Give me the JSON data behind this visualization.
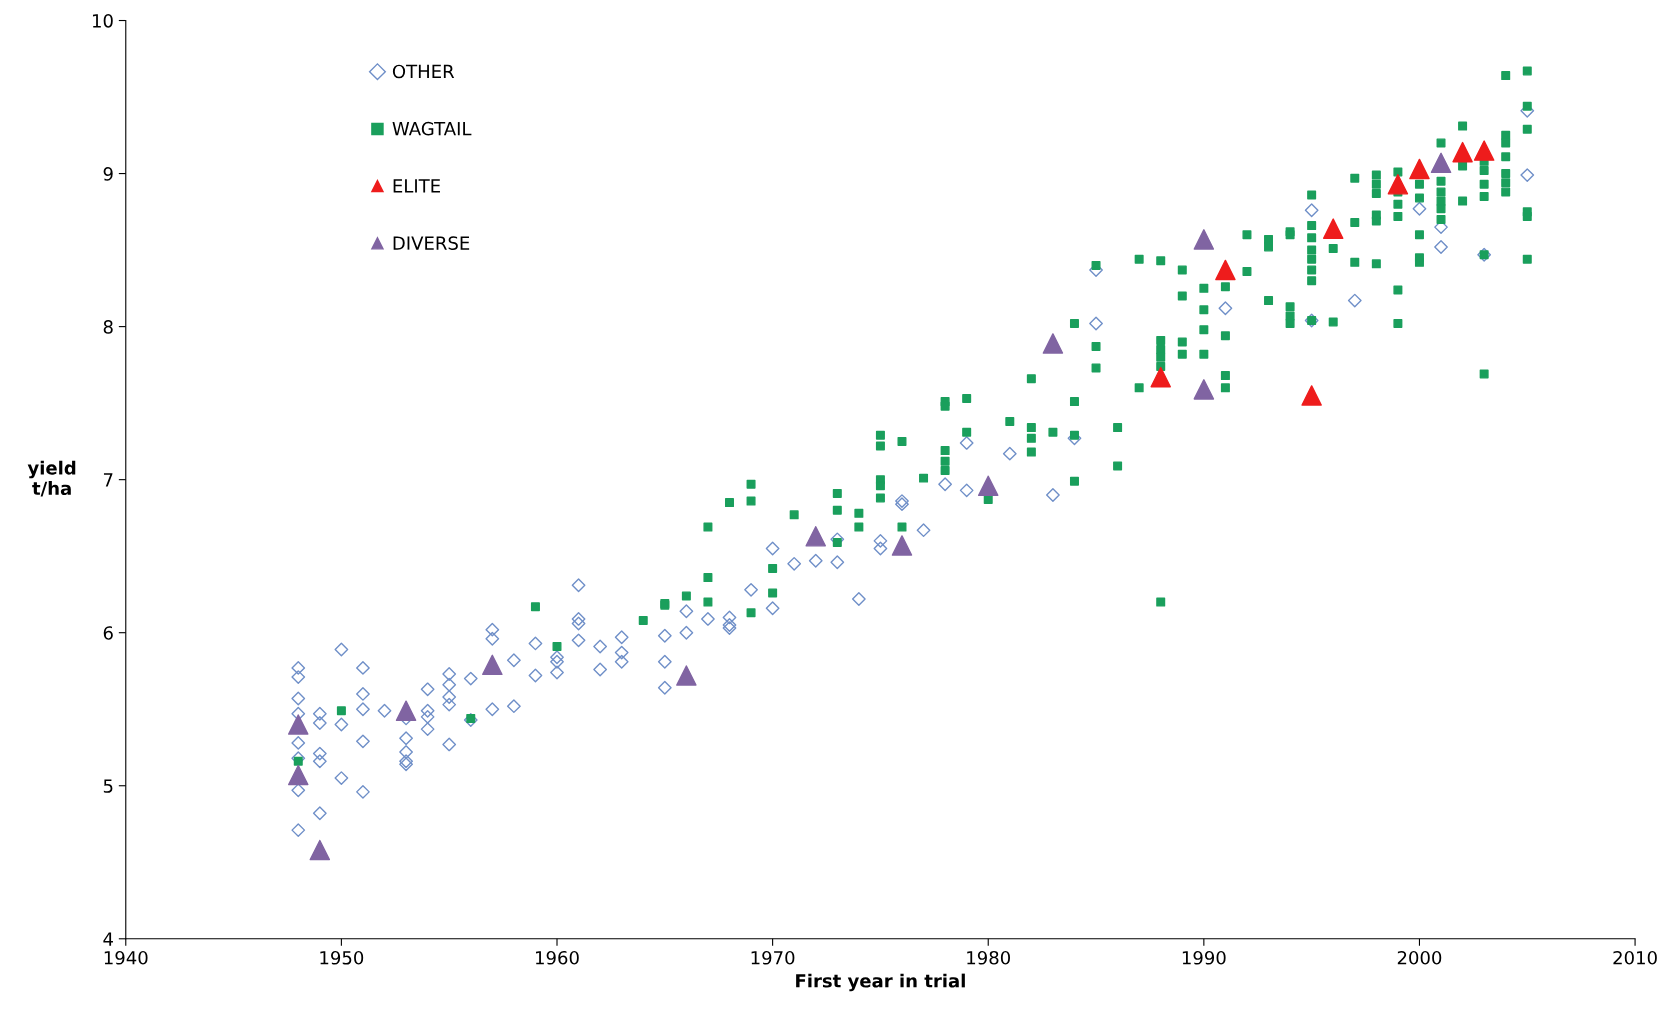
{
  "chart_data": {
    "type": "scatter",
    "xlabel": "First year in trial",
    "ylabel": "yield\nt/ha",
    "xlim": [
      1940,
      2010
    ],
    "xticks": [
      1940,
      1950,
      1960,
      1970,
      1980,
      1990,
      2000,
      2010
    ],
    "ylim": [
      4,
      10
    ],
    "yticks": [
      4,
      5,
      6,
      7,
      8,
      9,
      10
    ],
    "grid": false,
    "legend": "top left",
    "series": [
      {
        "name": "OTHER",
        "color": "#6f8fc8",
        "marker": "diamond",
        "x": [
          1948,
          1948,
          1948,
          1948,
          1948,
          1948,
          1948,
          1948,
          1949,
          1949,
          1949,
          1949,
          1949,
          1950,
          1950,
          1950,
          1951,
          1951,
          1951,
          1951,
          1951,
          1952,
          1953,
          1953,
          1953,
          1953,
          1953,
          1954,
          1954,
          1954,
          1954,
          1955,
          1955,
          1955,
          1955,
          1955,
          1956,
          1956,
          1957,
          1957,
          1957,
          1958,
          1958,
          1959,
          1959,
          1960,
          1960,
          1960,
          1961,
          1961,
          1961,
          1961,
          1962,
          1962,
          1963,
          1963,
          1963,
          1965,
          1965,
          1965,
          1966,
          1966,
          1967,
          1968,
          1968,
          1968,
          1969,
          1970,
          1970,
          1971,
          1972,
          1973,
          1973,
          1974,
          1975,
          1975,
          1976,
          1976,
          1977,
          1978,
          1979,
          1979,
          1981,
          1983,
          1984,
          1985,
          1985,
          1991,
          1995,
          1995,
          1997,
          2000,
          2001,
          2001,
          2003,
          2005,
          2005
        ],
        "values": [
          5.77,
          5.71,
          5.57,
          5.47,
          5.28,
          5.18,
          4.97,
          4.71,
          5.47,
          5.41,
          5.21,
          5.16,
          4.82,
          5.89,
          5.4,
          5.05,
          5.77,
          5.6,
          5.5,
          5.29,
          4.96,
          5.49,
          5.44,
          5.31,
          5.22,
          5.16,
          5.14,
          5.63,
          5.49,
          5.45,
          5.37,
          5.73,
          5.66,
          5.58,
          5.53,
          5.27,
          5.7,
          5.43,
          6.02,
          5.96,
          5.5,
          5.82,
          5.52,
          5.93,
          5.72,
          5.84,
          5.81,
          5.74,
          6.31,
          6.09,
          6.06,
          5.95,
          5.91,
          5.76,
          5.97,
          5.87,
          5.81,
          5.98,
          5.81,
          5.64,
          6.14,
          6.0,
          6.09,
          6.1,
          6.05,
          6.03,
          6.28,
          6.55,
          6.16,
          6.45,
          6.47,
          6.61,
          6.46,
          6.22,
          6.6,
          6.55,
          6.86,
          6.84,
          6.67,
          6.97,
          7.24,
          6.93,
          7.17,
          6.9,
          7.27,
          8.37,
          8.02,
          8.12,
          8.76,
          8.04,
          8.17,
          8.77,
          8.65,
          8.52,
          8.47,
          9.41,
          8.99
        ]
      },
      {
        "name": "WAGTAIL",
        "color": "#1a9f5c",
        "marker": "square",
        "x": [
          1948,
          1950,
          1956,
          1959,
          1960,
          1964,
          1965,
          1965,
          1966,
          1967,
          1967,
          1967,
          1968,
          1969,
          1969,
          1969,
          1970,
          1970,
          1971,
          1973,
          1973,
          1973,
          1974,
          1974,
          1975,
          1975,
          1975,
          1975,
          1975,
          1976,
          1976,
          1977,
          1978,
          1978,
          1978,
          1978,
          1978,
          1979,
          1979,
          1980,
          1981,
          1982,
          1982,
          1982,
          1982,
          1983,
          1984,
          1984,
          1984,
          1984,
          1985,
          1985,
          1985,
          1986,
          1986,
          1987,
          1987,
          1988,
          1988,
          1988,
          1988,
          1988,
          1988,
          1989,
          1989,
          1989,
          1989,
          1990,
          1990,
          1990,
          1990,
          1991,
          1991,
          1991,
          1991,
          1992,
          1992,
          1993,
          1993,
          1993,
          1994,
          1994,
          1994,
          1994,
          1994,
          1995,
          1995,
          1995,
          1995,
          1995,
          1995,
          1995,
          1995,
          1996,
          1996,
          1997,
          1997,
          1997,
          1998,
          1998,
          1998,
          1998,
          1998,
          1998,
          1999,
          1999,
          1999,
          1999,
          1999,
          1999,
          2000,
          2000,
          2000,
          2000,
          2000,
          2001,
          2001,
          2001,
          2001,
          2001,
          2001,
          2002,
          2002,
          2002,
          2003,
          2003,
          2003,
          2003,
          2003,
          2003,
          2004,
          2004,
          2004,
          2004,
          2004,
          2004,
          2004,
          2005,
          2005,
          2005,
          2005,
          2005,
          2005
        ],
        "values": [
          5.16,
          5.49,
          5.44,
          6.17,
          5.91,
          6.08,
          6.19,
          6.18,
          6.24,
          6.69,
          6.36,
          6.2,
          6.85,
          6.97,
          6.86,
          6.13,
          6.42,
          6.26,
          6.77,
          6.91,
          6.8,
          6.59,
          6.78,
          6.69,
          7.29,
          7.22,
          7.0,
          6.96,
          6.88,
          7.25,
          6.69,
          7.01,
          7.51,
          7.48,
          7.19,
          7.12,
          7.06,
          7.53,
          7.31,
          6.87,
          7.38,
          7.66,
          7.34,
          7.27,
          7.18,
          7.31,
          8.02,
          7.51,
          7.29,
          6.99,
          8.4,
          7.87,
          7.73,
          7.34,
          7.09,
          8.44,
          7.6,
          8.43,
          7.91,
          7.85,
          7.8,
          7.74,
          6.2,
          8.37,
          8.2,
          7.9,
          7.82,
          8.25,
          8.11,
          7.98,
          7.82,
          8.26,
          7.94,
          7.68,
          7.6,
          8.6,
          8.36,
          8.57,
          8.52,
          8.17,
          8.62,
          8.6,
          8.13,
          8.07,
          8.02,
          8.86,
          8.66,
          8.58,
          8.5,
          8.44,
          8.37,
          8.3,
          8.04,
          8.51,
          8.03,
          8.97,
          8.68,
          8.42,
          8.99,
          8.93,
          8.87,
          8.73,
          8.69,
          8.41,
          9.01,
          8.88,
          8.8,
          8.72,
          8.24,
          8.02,
          8.93,
          8.84,
          8.6,
          8.45,
          8.42,
          9.2,
          8.95,
          8.88,
          8.82,
          8.77,
          8.7,
          9.31,
          9.05,
          8.82,
          9.08,
          9.02,
          8.93,
          8.85,
          8.47,
          7.69,
          9.64,
          9.25,
          9.2,
          9.11,
          9.0,
          8.94,
          8.88,
          9.67,
          9.44,
          9.29,
          8.75,
          8.72,
          8.44
        ]
      },
      {
        "name": "ELITE",
        "color": "#ee1c1c",
        "marker": "triangle",
        "x": [
          1988,
          1991,
          1995,
          1996,
          1999,
          2000,
          2002,
          2003
        ],
        "values": [
          7.67,
          8.37,
          7.55,
          8.64,
          8.93,
          9.03,
          9.14,
          9.15
        ]
      },
      {
        "name": "DIVERSE",
        "color": "#8064a2",
        "marker": "triangle",
        "x": [
          1948,
          1948,
          1949,
          1953,
          1957,
          1966,
          1972,
          1976,
          1980,
          1983,
          1990,
          1990,
          2001
        ],
        "values": [
          5.4,
          5.07,
          4.58,
          5.49,
          5.79,
          5.72,
          6.63,
          6.57,
          6.96,
          7.89,
          8.57,
          7.59,
          9.07
        ]
      }
    ]
  }
}
